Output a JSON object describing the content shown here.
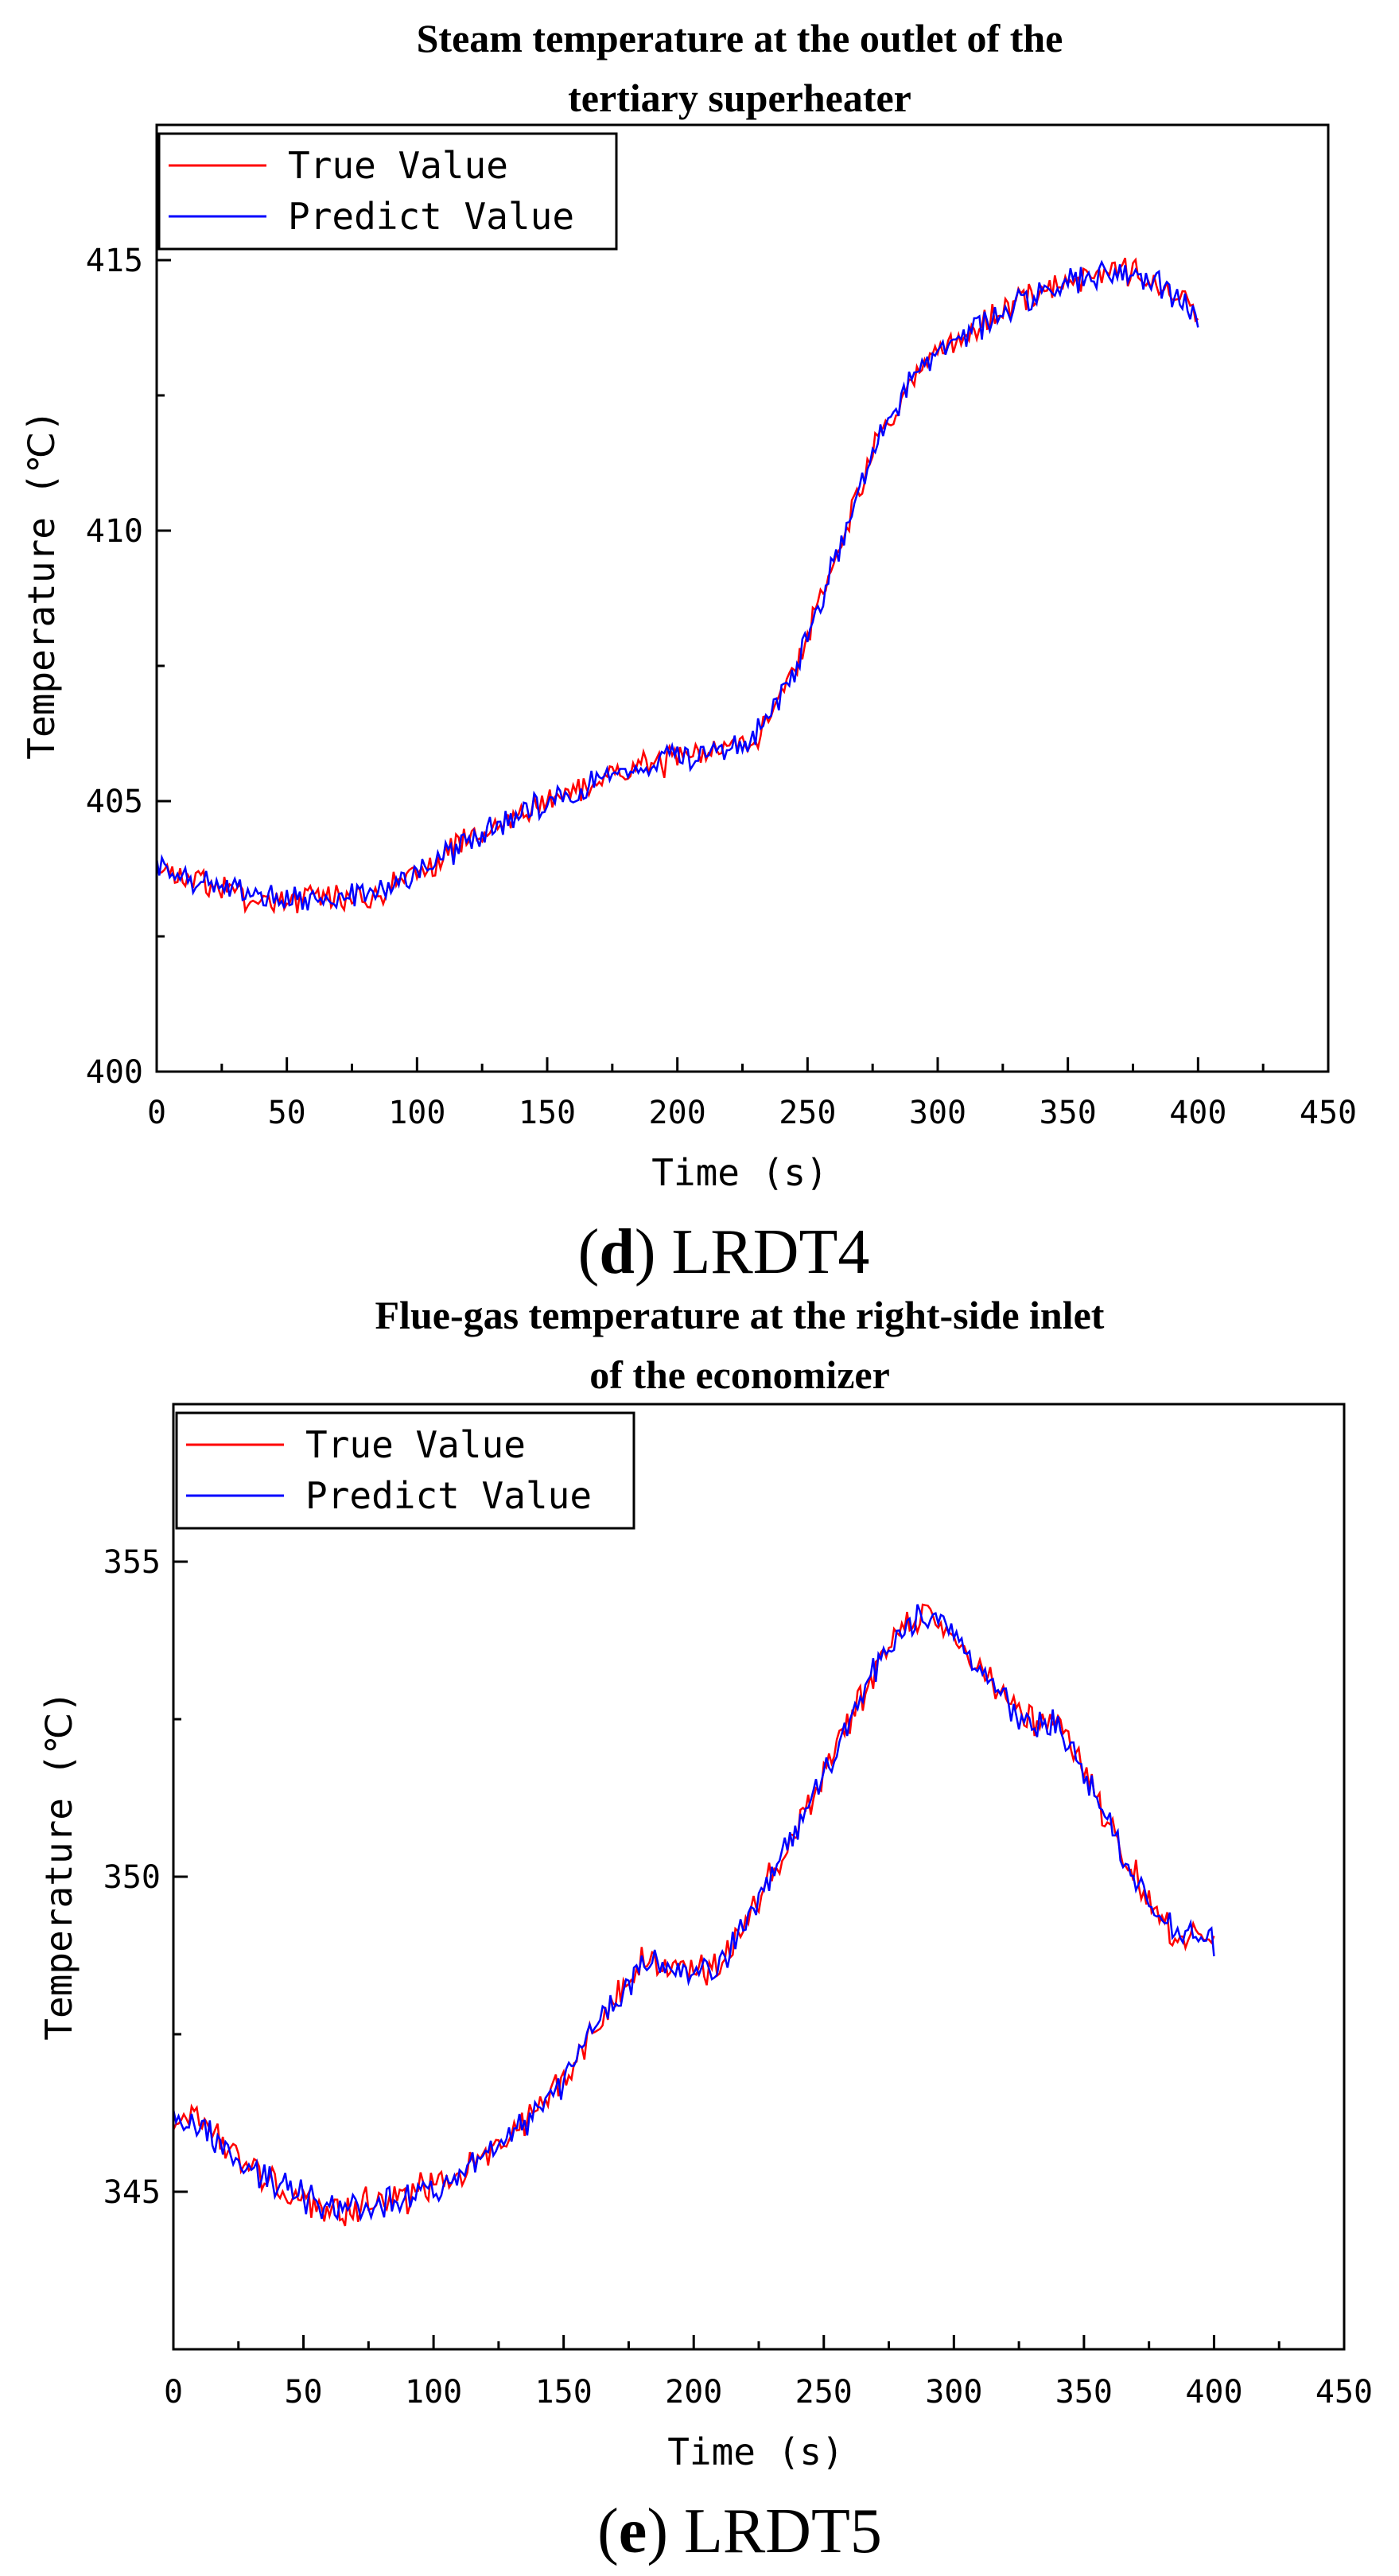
{
  "chart_data": [
    {
      "type": "line",
      "title_lines": [
        "Steam temperature at the outlet of the",
        "tertiary superheater"
      ],
      "xlabel": "Time (s)",
      "ylabel": "Temperature (℃)",
      "xlim": [
        0,
        450
      ],
      "ylim": [
        400,
        417.5
      ],
      "xticks": [
        "0",
        "50",
        "100",
        "150",
        "200",
        "250",
        "300",
        "350",
        "400",
        "450"
      ],
      "yticks": [
        "400",
        "405",
        "410",
        "415"
      ],
      "legend": [
        "True Value",
        "Predict Value"
      ],
      "colors": {
        "true": "#ff0000",
        "predict": "#0000ff"
      },
      "caption_letter": "d",
      "caption_text": "LRDT4",
      "trend": {
        "x": [
          0,
          10,
          25,
          40,
          55,
          70,
          85,
          100,
          125,
          150,
          175,
          200,
          215,
          230,
          245,
          260,
          275,
          290,
          305,
          320,
          335,
          350,
          365,
          375,
          390,
          400
        ],
        "y": [
          403.8,
          403.6,
          403.4,
          403.2,
          403.2,
          403.2,
          403.3,
          403.7,
          404.4,
          405.0,
          405.5,
          405.8,
          405.95,
          406.2,
          407.4,
          409.4,
          411.5,
          412.8,
          413.5,
          413.9,
          414.3,
          414.6,
          414.8,
          414.8,
          414.4,
          414.0
        ]
      },
      "seed": 7
    },
    {
      "type": "line",
      "title_lines": [
        "Flue-gas temperature at the right-side inlet",
        "of the economizer"
      ],
      "xlabel": "Time (s)",
      "ylabel": "Temperature (℃)",
      "xlim": [
        0,
        450
      ],
      "ylim": [
        342.5,
        357.5
      ],
      "xticks": [
        "0",
        "50",
        "100",
        "150",
        "200",
        "250",
        "300",
        "350",
        "400",
        "450"
      ],
      "yticks": [
        "345",
        "350",
        "355"
      ],
      "legend": [
        "True Value",
        "Predict Value"
      ],
      "colors": {
        "true": "#ff0000",
        "predict": "#0000ff"
      },
      "caption_letter": "e",
      "caption_text": "LRDT5",
      "trend": {
        "x": [
          0,
          10,
          20,
          35,
          50,
          60,
          75,
          90,
          105,
          120,
          135,
          150,
          165,
          180,
          195,
          210,
          225,
          240,
          255,
          270,
          280,
          290,
          300,
          315,
          325,
          340,
          355,
          365,
          375,
          385,
          400
        ],
        "y": [
          346.2,
          346.1,
          345.7,
          345.2,
          344.9,
          344.7,
          344.8,
          344.9,
          345.2,
          345.6,
          346.1,
          346.8,
          347.8,
          348.6,
          348.5,
          348.6,
          349.6,
          350.8,
          352.0,
          353.3,
          353.9,
          354.2,
          353.8,
          353.1,
          352.5,
          352.4,
          351.2,
          350.3,
          349.6,
          349.1,
          349.0
        ]
      },
      "seed": 19
    }
  ]
}
